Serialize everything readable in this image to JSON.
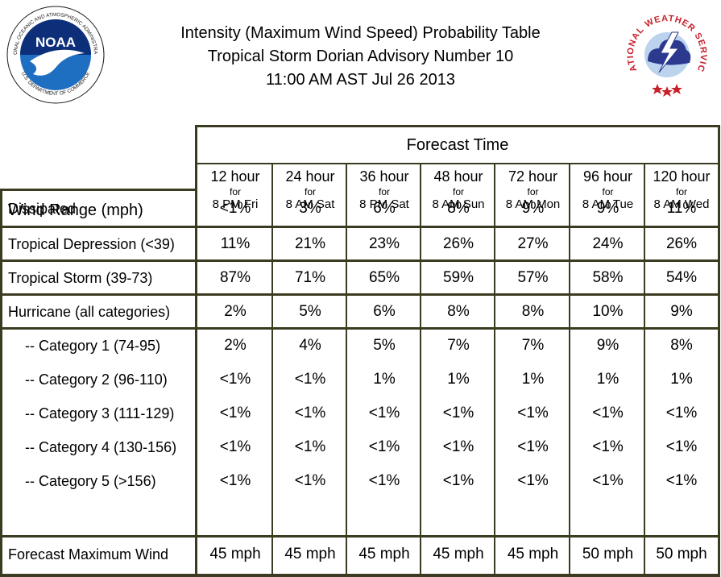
{
  "header": {
    "title_line1": "Intensity (Maximum Wind Speed) Probability Table",
    "title_line2": "Tropical Storm Dorian Advisory Number 10",
    "title_line3": "11:00 AM AST Jul 26 2013"
  },
  "logos": {
    "noaa_text": "NOAA",
    "noaa_ring_text": "NATIONAL OCEANIC AND ATMOSPHERIC ADMINISTRATION",
    "noaa_ring_text_bottom": "U.S. DEPARTMENT OF COMMERCE",
    "nws_ring_text": "NATIONAL WEATHER SERVICE"
  },
  "table": {
    "forecast_time_label": "Forecast Time",
    "row_header_label": "Wind Range (mph)",
    "for_label": "for",
    "columns": [
      {
        "hour": "12 hour",
        "when": "8 PM Fri"
      },
      {
        "hour": "24 hour",
        "when": "8 AM Sat"
      },
      {
        "hour": "36 hour",
        "when": "8 PM Sat"
      },
      {
        "hour": "48 hour",
        "when": "8 AM Sun"
      },
      {
        "hour": "72 hour",
        "when": "8 AM Mon"
      },
      {
        "hour": "96 hour",
        "when": "8 AM Tue"
      },
      {
        "hour": "120 hour",
        "when": "8 AM Wed"
      }
    ],
    "rows": [
      {
        "label": "Dissipated",
        "values": [
          "<1%",
          "3%",
          "6%",
          "8%",
          "9%",
          "9%",
          "11%"
        ]
      },
      {
        "label": "Tropical Depression (<39)",
        "values": [
          "11%",
          "21%",
          "23%",
          "26%",
          "27%",
          "24%",
          "26%"
        ]
      },
      {
        "label": "Tropical Storm (39-73)",
        "values": [
          "87%",
          "71%",
          "65%",
          "59%",
          "57%",
          "58%",
          "54%"
        ]
      },
      {
        "label": "Hurricane (all categories)",
        "values": [
          "2%",
          "5%",
          "6%",
          "8%",
          "8%",
          "10%",
          "9%"
        ]
      },
      {
        "label": "-- Category 1 (74-95)",
        "values": [
          "2%",
          "4%",
          "5%",
          "7%",
          "7%",
          "9%",
          "8%"
        ]
      },
      {
        "label": "-- Category 2 (96-110)",
        "values": [
          "<1%",
          "<1%",
          "1%",
          "1%",
          "1%",
          "1%",
          "1%"
        ]
      },
      {
        "label": "-- Category 3 (111-129)",
        "values": [
          "<1%",
          "<1%",
          "<1%",
          "<1%",
          "<1%",
          "<1%",
          "<1%"
        ]
      },
      {
        "label": "-- Category 4 (130-156)",
        "values": [
          "<1%",
          "<1%",
          "<1%",
          "<1%",
          "<1%",
          "<1%",
          "<1%"
        ]
      },
      {
        "label": "-- Category 5 (>156)",
        "values": [
          "<1%",
          "<1%",
          "<1%",
          "<1%",
          "<1%",
          "<1%",
          "<1%"
        ]
      }
    ],
    "footer": {
      "label": "Forecast Maximum Wind",
      "values": [
        "45 mph",
        "45 mph",
        "45 mph",
        "45 mph",
        "45 mph",
        "50 mph",
        "50 mph"
      ]
    }
  }
}
